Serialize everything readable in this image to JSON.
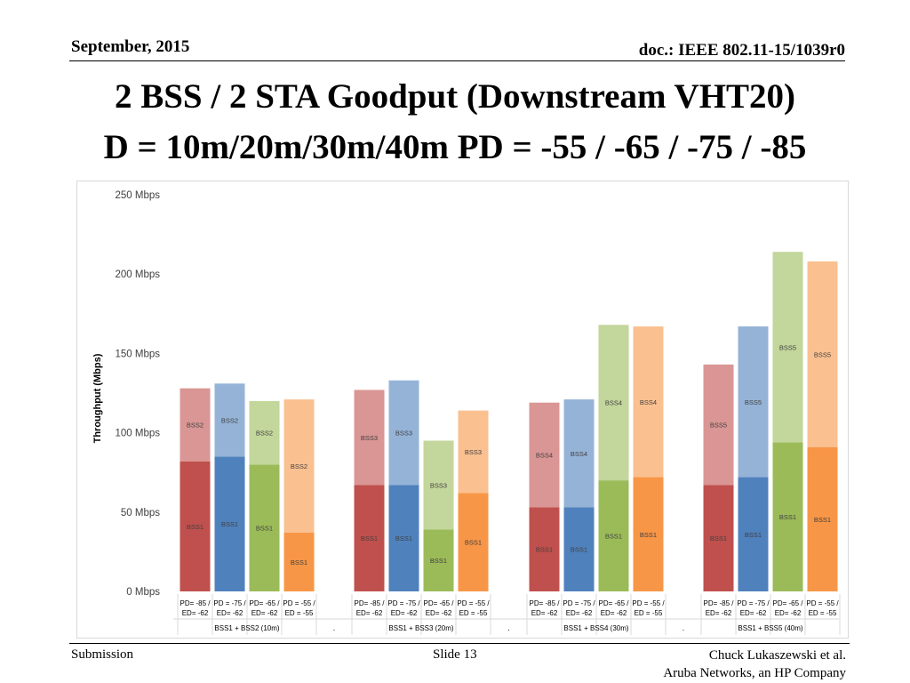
{
  "header": {
    "date": "September, 2015",
    "doc": "doc.: IEEE 802.11-15/1039r0"
  },
  "title": {
    "line1": "2 BSS / 2 STA Goodput (Downstream VHT20)",
    "line2": "D = 10m/20m/30m/40m  PD = -55 / -65 / -75 / -85"
  },
  "footer": {
    "left": "Submission",
    "center": "Slide 13",
    "right_line1": "Chuck Lukaszewski et al.",
    "right_line2": "Aruba Networks, an HP Company"
  },
  "chart_data": {
    "type": "bar",
    "stacked": true,
    "ylabel": "Throughput (Mbps)",
    "ylim": [
      0,
      250
    ],
    "yticks": [
      {
        "value": 0,
        "label": "0 Mbps"
      },
      {
        "value": 50,
        "label": "50 Mbps"
      },
      {
        "value": 100,
        "label": "100 Mbps"
      },
      {
        "value": 150,
        "label": "150 Mbps"
      },
      {
        "value": 200,
        "label": "200 Mbps"
      },
      {
        "value": 250,
        "label": "250 Mbps"
      }
    ],
    "grid": false,
    "colors": {
      "red": {
        "dark": "#c0504d",
        "light": "#d99694"
      },
      "blue": {
        "dark": "#4f81bd",
        "light": "#95b3d7"
      },
      "green": {
        "dark": "#9bbb59",
        "light": "#c3d69b"
      },
      "orange": {
        "dark": "#f79646",
        "light": "#fac090"
      }
    },
    "separator_label": ".",
    "groups": [
      {
        "label": "BSS1 + BSS2 (10m)",
        "bars": [
          {
            "cat1": "PD= -85 /",
            "cat2": "ED= -62",
            "color": "red",
            "bss1": 82,
            "bss1_label": "BSS1",
            "other": 46,
            "other_label": "BSS2"
          },
          {
            "cat1": "PD = -75 /",
            "cat2": "ED= -62",
            "color": "blue",
            "bss1": 85,
            "bss1_label": "BSS1",
            "other": 46,
            "other_label": "BSS2"
          },
          {
            "cat1": "PD= -65 /",
            "cat2": "ED= -62",
            "color": "green",
            "bss1": 80,
            "bss1_label": "BSS1",
            "other": 40,
            "other_label": "BSS2"
          },
          {
            "cat1": "PD = -55 /",
            "cat2": "ED = -55",
            "color": "orange",
            "bss1": 37,
            "bss1_label": "BSS1",
            "other": 84,
            "other_label": "BSS2"
          }
        ]
      },
      {
        "label": "BSS1 + BSS3 (20m)",
        "bars": [
          {
            "cat1": "PD= -85 /",
            "cat2": "ED= -62",
            "color": "red",
            "bss1": 67,
            "bss1_label": "BSS1",
            "other": 60,
            "other_label": "BSS3"
          },
          {
            "cat1": "PD = -75 /",
            "cat2": "ED= -62",
            "color": "blue",
            "bss1": 67,
            "bss1_label": "BSS1",
            "other": 66,
            "other_label": "BSS3"
          },
          {
            "cat1": "PD= -65 /",
            "cat2": "ED= -62",
            "color": "green",
            "bss1": 39,
            "bss1_label": "BSS1",
            "other": 56,
            "other_label": "BSS3"
          },
          {
            "cat1": "PD = -55 /",
            "cat2": "ED = -55",
            "color": "orange",
            "bss1": 62,
            "bss1_label": "BSS1",
            "other": 52,
            "other_label": "BSS3"
          }
        ]
      },
      {
        "label": "BSS1 + BSS4 (30m)",
        "bars": [
          {
            "cat1": "PD= -85 /",
            "cat2": "ED= -62",
            "color": "red",
            "bss1": 53,
            "bss1_label": "BSS1",
            "other": 66,
            "other_label": "BSS4"
          },
          {
            "cat1": "PD = -75 /",
            "cat2": "ED= -62",
            "color": "blue",
            "bss1": 53,
            "bss1_label": "BSS1",
            "other": 68,
            "other_label": "BSS4"
          },
          {
            "cat1": "PD= -65 /",
            "cat2": "ED= -62",
            "color": "green",
            "bss1": 70,
            "bss1_label": "BSS1",
            "other": 98,
            "other_label": "BSS4"
          },
          {
            "cat1": "PD = -55 /",
            "cat2": "ED = -55",
            "color": "orange",
            "bss1": 72,
            "bss1_label": "BSS1",
            "other": 95,
            "other_label": "BSS4"
          }
        ]
      },
      {
        "label": "BSS1 + BSS5 (40m)",
        "bars": [
          {
            "cat1": "PD= -85 /",
            "cat2": "ED= -62",
            "color": "red",
            "bss1": 67,
            "bss1_label": "BSS1",
            "other": 76,
            "other_label": "BSS5"
          },
          {
            "cat1": "PD = -75 /",
            "cat2": "ED= -62",
            "color": "blue",
            "bss1": 72,
            "bss1_label": "BSS1",
            "other": 95,
            "other_label": "BSS5"
          },
          {
            "cat1": "PD= -65 /",
            "cat2": "ED= -62",
            "color": "green",
            "bss1": 94,
            "bss1_label": "BSS1",
            "other": 120,
            "other_label": "BSS5"
          },
          {
            "cat1": "PD = -55 /",
            "cat2": "ED = -55",
            "color": "orange",
            "bss1": 91,
            "bss1_label": "BSS1",
            "other": 117,
            "other_label": "BSS5"
          }
        ]
      }
    ]
  }
}
